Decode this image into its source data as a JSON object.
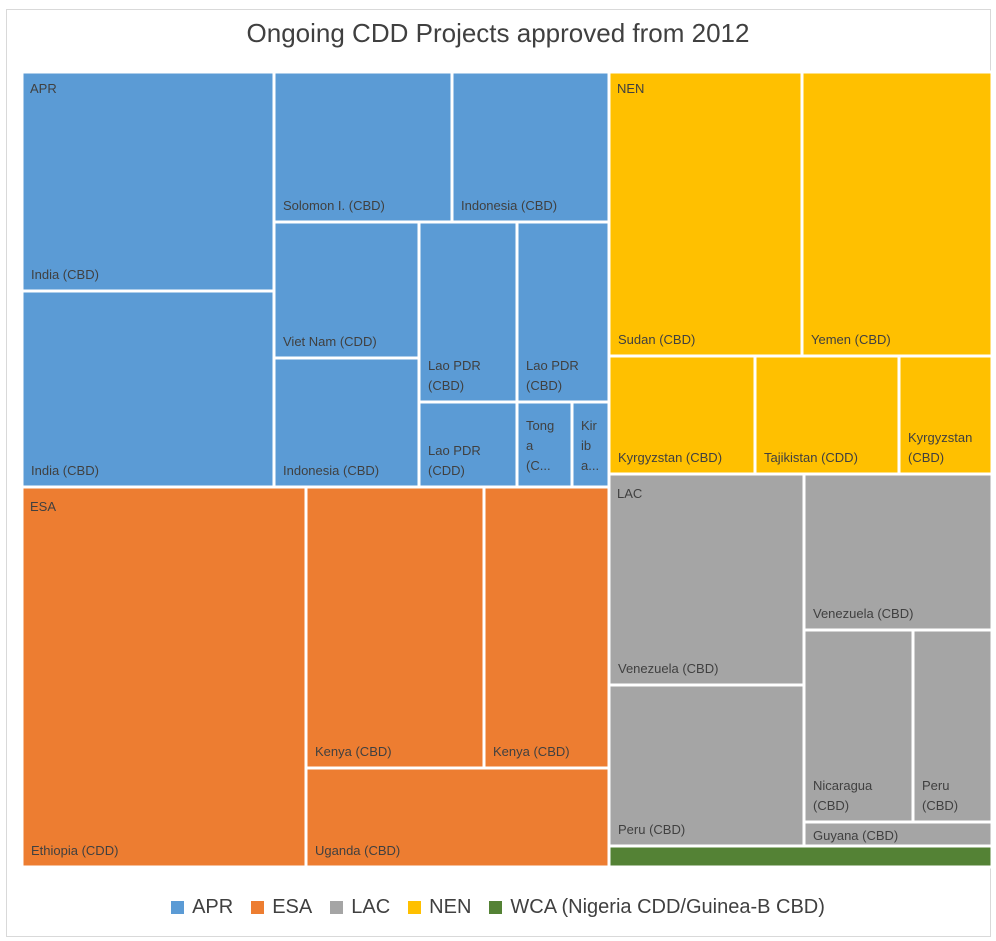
{
  "chart_data": {
    "type": "treemap",
    "title": "Ongoing CDD Projects approved from 2012",
    "colors": {
      "APR": "#5b9bd5",
      "ESA": "#ed7d31",
      "LAC": "#a5a5a5",
      "NEN": "#ffc000",
      "WCA": "#548235"
    },
    "group_labels": [
      "APR",
      "ESA",
      "NEN",
      "LAC"
    ],
    "tiles": [
      {
        "group": "APR",
        "label": "India (CBD)"
      },
      {
        "group": "APR",
        "label": "India (CBD)"
      },
      {
        "group": "APR",
        "label": "Solomon I. (CBD)"
      },
      {
        "group": "APR",
        "label": "Indonesia (CBD)"
      },
      {
        "group": "APR",
        "label": "Viet Nam (CDD)"
      },
      {
        "group": "APR",
        "label": "Indonesia (CBD)"
      },
      {
        "group": "APR",
        "label": "Lao PDR (CBD)"
      },
      {
        "group": "APR",
        "label": "Lao PDR (CBD)"
      },
      {
        "group": "APR",
        "label": "Lao PDR (CDD)"
      },
      {
        "group": "APR",
        "label": "Tong a (C..."
      },
      {
        "group": "APR",
        "label": "Kir ib a..."
      },
      {
        "group": "ESA",
        "label": "Ethiopia (CDD)"
      },
      {
        "group": "ESA",
        "label": "Kenya (CBD)"
      },
      {
        "group": "ESA",
        "label": "Kenya (CBD)"
      },
      {
        "group": "ESA",
        "label": "Uganda (CBD)"
      },
      {
        "group": "NEN",
        "label": "Sudan (CBD)"
      },
      {
        "group": "NEN",
        "label": "Yemen (CBD)"
      },
      {
        "group": "NEN",
        "label": "Kyrgyzstan (CBD)"
      },
      {
        "group": "NEN",
        "label": "Tajikistan (CDD)"
      },
      {
        "group": "NEN",
        "label": "Kyrgyzstan (CBD)"
      },
      {
        "group": "LAC",
        "label": "Venezuela (CBD)"
      },
      {
        "group": "LAC",
        "label": "Venezuela (CBD)"
      },
      {
        "group": "LAC",
        "label": "Nicaragua (CBD)"
      },
      {
        "group": "LAC",
        "label": "Peru (CBD)"
      },
      {
        "group": "LAC",
        "label": "Peru (CBD)"
      },
      {
        "group": "LAC",
        "label": "Guyana (CBD)"
      },
      {
        "group": "WCA",
        "label": ""
      }
    ],
    "legend": [
      "APR",
      "ESA",
      "LAC",
      "NEN",
      "WCA (Nigeria CDD/Guinea-B CBD)"
    ]
  }
}
